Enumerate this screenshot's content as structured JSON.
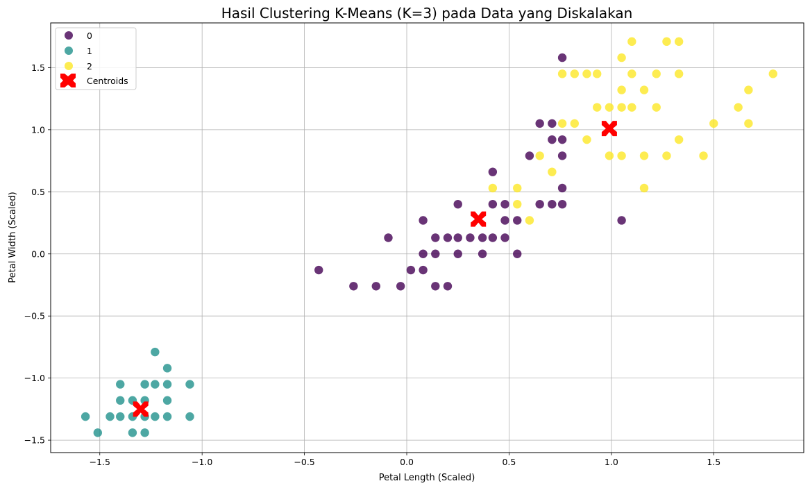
{
  "chart_data": {
    "type": "scatter",
    "title": "Hasil Clustering K-Means (K=3) pada Data yang Diskalakan",
    "xlabel": "Petal Length (Scaled)",
    "ylabel": "Petal Width (Scaled)",
    "xlim": [
      -1.74,
      1.94
    ],
    "ylim": [
      -1.6,
      1.86
    ],
    "xticks": [
      -1.5,
      -1.0,
      -0.5,
      0.0,
      0.5,
      1.0,
      1.5
    ],
    "xtick_labels": [
      "−1.5",
      "−1.0",
      "−0.5",
      "0.0",
      "0.5",
      "1.0",
      "1.5"
    ],
    "yticks": [
      -1.5,
      -1.0,
      -0.5,
      0.0,
      0.5,
      1.0,
      1.5
    ],
    "ytick_labels": [
      "−1.5",
      "−1.0",
      "−0.5",
      "0.0",
      "0.5",
      "1.0",
      "1.5"
    ],
    "grid": true,
    "legend_position": "top-left",
    "series": [
      {
        "name": "0",
        "color": "#440154",
        "points": [
          [
            -0.43,
            -0.13
          ],
          [
            -0.26,
            -0.26
          ],
          [
            -0.15,
            -0.26
          ],
          [
            -0.09,
            0.13
          ],
          [
            -0.03,
            -0.26
          ],
          [
            0.02,
            -0.13
          ],
          [
            0.08,
            -0.13
          ],
          [
            0.08,
            0.0
          ],
          [
            0.08,
            0.27
          ],
          [
            0.14,
            0.0
          ],
          [
            0.14,
            0.13
          ],
          [
            0.14,
            -0.26
          ],
          [
            0.2,
            0.13
          ],
          [
            0.2,
            -0.26
          ],
          [
            0.25,
            0.13
          ],
          [
            0.25,
            0.0
          ],
          [
            0.25,
            0.4
          ],
          [
            0.31,
            0.13
          ],
          [
            0.37,
            0.0
          ],
          [
            0.37,
            0.13
          ],
          [
            0.42,
            0.13
          ],
          [
            0.42,
            0.4
          ],
          [
            0.42,
            0.66
          ],
          [
            0.48,
            0.13
          ],
          [
            0.48,
            0.27
          ],
          [
            0.48,
            0.4
          ],
          [
            0.54,
            0.27
          ],
          [
            0.54,
            0.0
          ],
          [
            0.6,
            0.79
          ],
          [
            0.65,
            0.4
          ],
          [
            0.65,
            1.05
          ],
          [
            0.71,
            0.92
          ],
          [
            0.71,
            1.05
          ],
          [
            0.71,
            0.4
          ],
          [
            0.76,
            0.79
          ],
          [
            0.76,
            0.92
          ],
          [
            0.76,
            0.53
          ],
          [
            0.76,
            0.4
          ],
          [
            0.76,
            1.58
          ],
          [
            1.05,
            0.27
          ]
        ]
      },
      {
        "name": "1",
        "color": "#21918c",
        "points": [
          [
            -1.57,
            -1.31
          ],
          [
            -1.51,
            -1.44
          ],
          [
            -1.45,
            -1.31
          ],
          [
            -1.4,
            -1.31
          ],
          [
            -1.4,
            -1.18
          ],
          [
            -1.4,
            -1.05
          ],
          [
            -1.34,
            -1.31
          ],
          [
            -1.34,
            -1.44
          ],
          [
            -1.34,
            -1.18
          ],
          [
            -1.28,
            -1.31
          ],
          [
            -1.28,
            -1.44
          ],
          [
            -1.28,
            -1.18
          ],
          [
            -1.28,
            -1.05
          ],
          [
            -1.23,
            -1.31
          ],
          [
            -1.23,
            -1.05
          ],
          [
            -1.23,
            -0.79
          ],
          [
            -1.17,
            -1.31
          ],
          [
            -1.17,
            -1.18
          ],
          [
            -1.17,
            -1.05
          ],
          [
            -1.17,
            -0.92
          ],
          [
            -1.06,
            -1.05
          ],
          [
            -1.06,
            -1.31
          ]
        ]
      },
      {
        "name": "2",
        "color": "#fde725",
        "points": [
          [
            0.42,
            0.53
          ],
          [
            0.54,
            0.4
          ],
          [
            0.54,
            0.53
          ],
          [
            0.6,
            0.27
          ],
          [
            0.65,
            0.79
          ],
          [
            0.71,
            0.66
          ],
          [
            0.76,
            1.05
          ],
          [
            0.76,
            1.45
          ],
          [
            0.82,
            1.05
          ],
          [
            0.82,
            1.45
          ],
          [
            0.88,
            0.92
          ],
          [
            0.88,
            1.45
          ],
          [
            0.93,
            1.45
          ],
          [
            0.93,
            1.18
          ],
          [
            0.99,
            1.18
          ],
          [
            0.99,
            0.79
          ],
          [
            1.05,
            0.79
          ],
          [
            1.05,
            1.18
          ],
          [
            1.05,
            1.32
          ],
          [
            1.05,
            1.58
          ],
          [
            1.1,
            1.18
          ],
          [
            1.1,
            1.45
          ],
          [
            1.1,
            1.71
          ],
          [
            1.16,
            0.79
          ],
          [
            1.16,
            1.32
          ],
          [
            1.16,
            0.53
          ],
          [
            1.22,
            1.18
          ],
          [
            1.22,
            1.45
          ],
          [
            1.27,
            0.79
          ],
          [
            1.27,
            1.71
          ],
          [
            1.33,
            0.92
          ],
          [
            1.33,
            1.45
          ],
          [
            1.33,
            1.71
          ],
          [
            1.45,
            0.79
          ],
          [
            1.5,
            1.05
          ],
          [
            1.62,
            1.18
          ],
          [
            1.67,
            1.05
          ],
          [
            1.67,
            1.32
          ],
          [
            1.79,
            1.45
          ]
        ]
      }
    ],
    "centroids": {
      "name": "Centroids",
      "color": "#ff0000",
      "points": [
        [
          -1.3,
          -1.25
        ],
        [
          0.35,
          0.28
        ],
        [
          0.99,
          1.01
        ]
      ]
    }
  }
}
